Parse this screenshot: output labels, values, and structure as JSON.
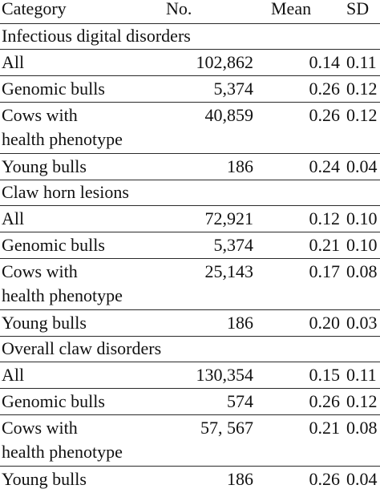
{
  "header": {
    "category": "Category",
    "no": "No.",
    "mean": "Mean",
    "sd": "SD"
  },
  "sections": [
    {
      "title": "Infectious digital disorders",
      "rows": [
        {
          "category": "All",
          "no": "102,862",
          "mean": "0.14",
          "sd": "0.11"
        },
        {
          "category": "Genomic bulls",
          "no": "5,374",
          "mean": "0.26",
          "sd": "0.12"
        },
        {
          "category_line1": "Cows with",
          "category_line2": "health phenotype",
          "no": "40,859",
          "mean": "0.26",
          "sd": "0.12"
        },
        {
          "category": "Young bulls",
          "no": "186",
          "mean": "0.24",
          "sd": "0.04"
        }
      ]
    },
    {
      "title": "Claw horn lesions",
      "rows": [
        {
          "category": "All",
          "no": "72,921",
          "mean": "0.12",
          "sd": "0.10"
        },
        {
          "category": "Genomic bulls",
          "no": "5,374",
          "mean": "0.21",
          "sd": "0.10"
        },
        {
          "category_line1": "Cows with",
          "category_line2": "health phenotype",
          "no": "25,143",
          "mean": "0.17",
          "sd": "0.08"
        },
        {
          "category": "Young bulls",
          "no": "186",
          "mean": "0.20",
          "sd": "0.03"
        }
      ]
    },
    {
      "title": "Overall claw disorders",
      "rows": [
        {
          "category": "All",
          "no": "130,354",
          "mean": "0.15",
          "sd": "0.11"
        },
        {
          "category": "Genomic bulls",
          "no": "574",
          "mean": "0.26",
          "sd": "0.12"
        },
        {
          "category_line1": "Cows with",
          "category_line2": "health phenotype",
          "no": "57, 567",
          "mean": "0.21",
          "sd": "0.08"
        },
        {
          "category": "Young bulls",
          "no": "186",
          "mean": "0.26",
          "sd": "0.04"
        }
      ]
    }
  ]
}
